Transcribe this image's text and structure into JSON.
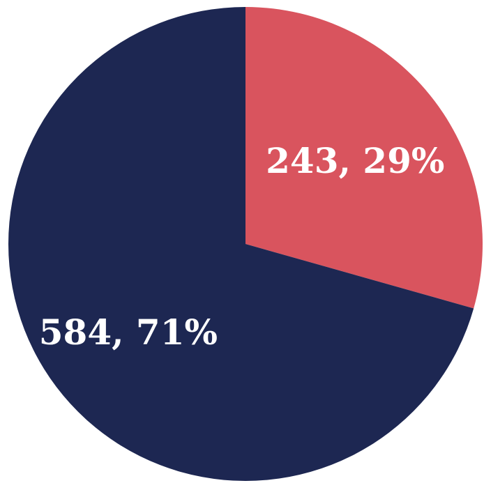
{
  "chart_data": {
    "type": "pie",
    "title": "",
    "slices": [
      {
        "value": 243,
        "percent": 29,
        "label": "243, 29%",
        "color": "#d9545e"
      },
      {
        "value": 584,
        "percent": 71,
        "label": "584, 71%",
        "color": "#1d2752"
      }
    ],
    "start_angle_deg": 0,
    "direction": "clockwise",
    "legend": "none"
  }
}
